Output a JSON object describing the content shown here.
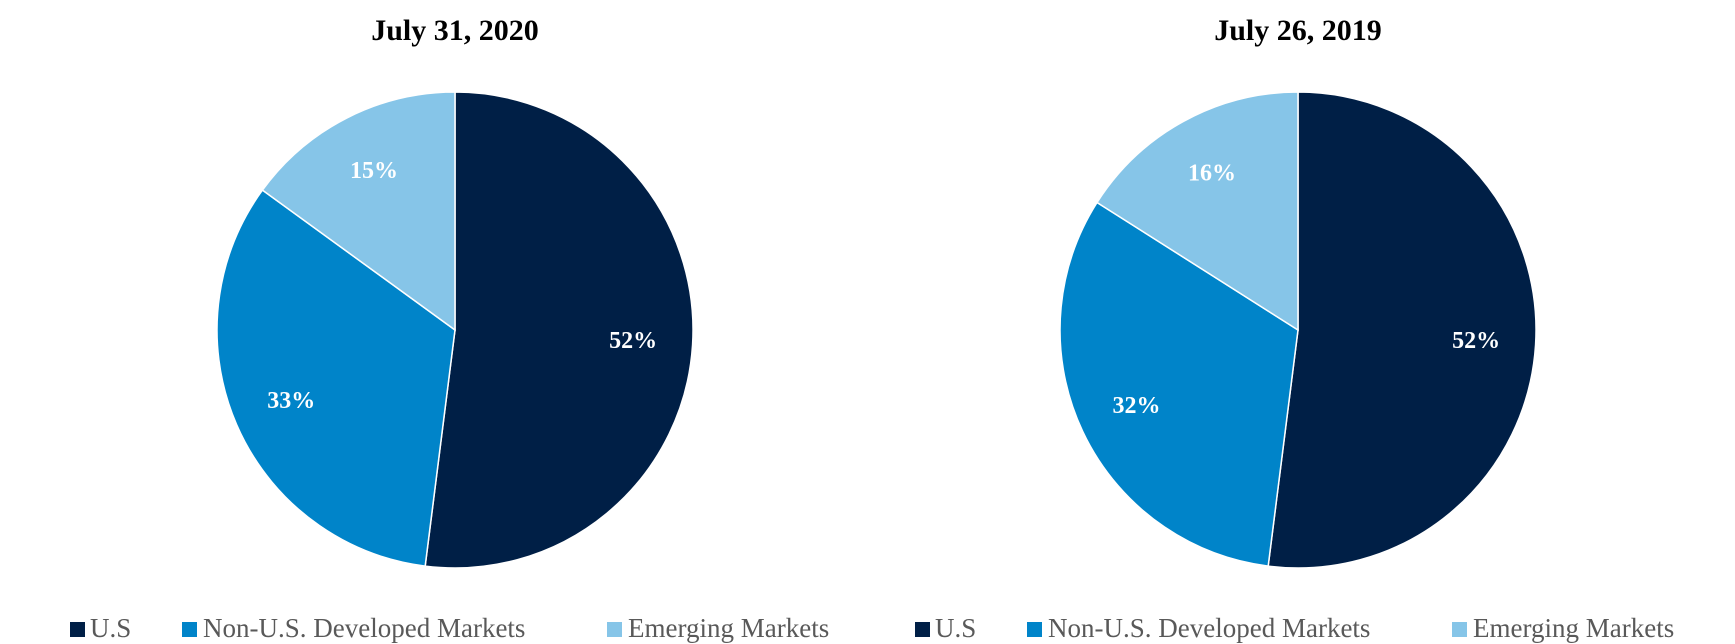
{
  "chart_data": [
    {
      "type": "pie",
      "title": "July 31, 2020",
      "categories": [
        "U.S",
        "Non-U.S. Developed Markets",
        "Emerging Markets"
      ],
      "values": [
        52,
        33,
        15
      ],
      "labels": [
        "52%",
        "33%",
        "15%"
      ],
      "colors": [
        "#001f46",
        "#0084c9",
        "#86c5e8"
      ],
      "legend": [
        "U.S",
        "Non-U.S. Developed Markets",
        "Emerging Markets"
      ],
      "legend_position": "bottom"
    },
    {
      "type": "pie",
      "title": "July 26, 2019",
      "categories": [
        "U.S",
        "Non-U.S. Developed Markets",
        "Emerging Markets"
      ],
      "values": [
        52,
        32,
        16
      ],
      "labels": [
        "52%",
        "32%",
        "16%"
      ],
      "colors": [
        "#001f46",
        "#0084c9",
        "#86c5e8"
      ],
      "legend": [
        "U.S",
        "Non-U.S. Developed Markets",
        "Emerging Markets"
      ],
      "legend_position": "bottom"
    }
  ]
}
